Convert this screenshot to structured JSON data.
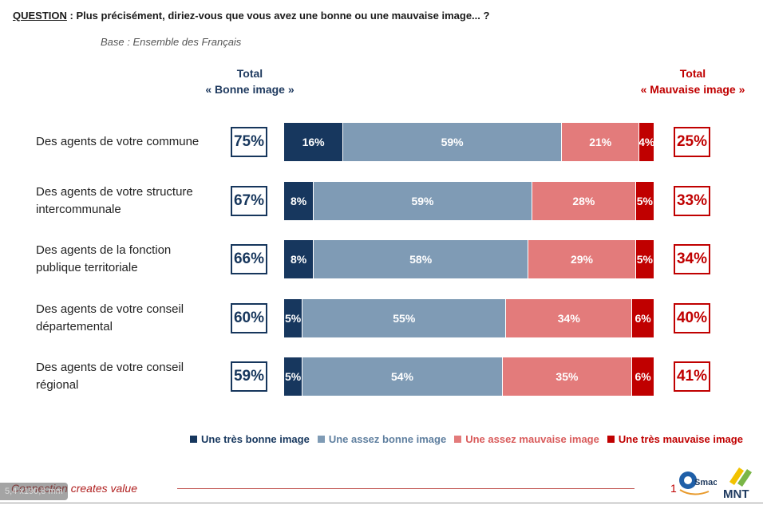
{
  "question": {
    "label": "QUESTION",
    "text": " : Plus précisément, diriez-vous que vous avez une bonne ou une mauvaise image... ?"
  },
  "base": "Base : Ensemble des Français",
  "totals_header": {
    "good_line1": "Total",
    "good_line2": "« Bonne image »",
    "bad_line1": "Total",
    "bad_line2": "« Mauvaise image »"
  },
  "colors": {
    "tres_bonne": "#17375e",
    "assez_bonne": "#7f9bb5",
    "assez_mauvaise": "#e37b7b",
    "tres_mauvaise": "#c00000"
  },
  "chart_data": {
    "type": "bar",
    "orientation": "horizontal-stacked-100",
    "categories": [
      "Des agents de votre commune",
      "Des agents de votre structure intercommunale",
      "Des agents de la fonction publique territoriale",
      "Des agents de votre conseil départemental",
      "Des agents de votre conseil régional"
    ],
    "category_lines": [
      [
        "Des agents de votre commune"
      ],
      [
        "Des agents de votre structure",
        "intercommunale"
      ],
      [
        "Des agents de la fonction",
        "publique territoriale"
      ],
      [
        "Des agents de votre conseil",
        "départemental"
      ],
      [
        "Des agents de votre conseil",
        "régional"
      ]
    ],
    "series": [
      {
        "name": "Une très bonne image",
        "values": [
          16,
          8,
          8,
          5,
          5
        ]
      },
      {
        "name": "Une assez bonne image",
        "values": [
          59,
          59,
          58,
          55,
          54
        ]
      },
      {
        "name": "Une assez mauvaise image",
        "values": [
          21,
          28,
          29,
          34,
          35
        ]
      },
      {
        "name": "Une très mauvaise image",
        "values": [
          4,
          5,
          5,
          6,
          6
        ]
      }
    ],
    "total_bonne": [
      75,
      67,
      66,
      60,
      59
    ],
    "total_mauvaise": [
      25,
      33,
      34,
      40,
      41
    ],
    "unit": "%",
    "legend_position": "bottom"
  },
  "footer": {
    "tagline": "Connection creates value",
    "dim_badge": "5,4 x190,8 mm",
    "page_number": "1",
    "logo_smacl_text": "Smacl",
    "logo_mnt_text": "MNT"
  }
}
